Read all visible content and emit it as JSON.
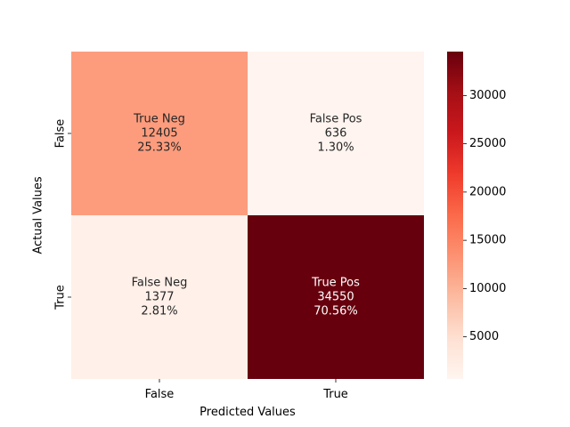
{
  "chart_data": {
    "type": "heatmap",
    "xlabel": "Predicted Values",
    "ylabel": "Actual Values",
    "x_categories": [
      "False",
      "True"
    ],
    "y_categories": [
      "False",
      "True"
    ],
    "cells": [
      {
        "row": 0,
        "col": 0,
        "label": "True Neg",
        "value": 12405,
        "value_text": "12405",
        "percent_text": "25.33%",
        "color": "#fc9c7d",
        "text_color": "#262626"
      },
      {
        "row": 0,
        "col": 1,
        "label": "False Pos",
        "value": 636,
        "value_text": "636",
        "percent_text": "1.30%",
        "color": "#fff4ef",
        "text_color": "#262626"
      },
      {
        "row": 1,
        "col": 0,
        "label": "False Neg",
        "value": 1377,
        "value_text": "1377",
        "percent_text": "2.81%",
        "color": "#fff0e9",
        "text_color": "#262626"
      },
      {
        "row": 1,
        "col": 1,
        "label": "True Pos",
        "value": 34550,
        "value_text": "34550",
        "percent_text": "70.56%",
        "color": "#67000d",
        "text_color": "#ffffff"
      }
    ],
    "colorbar": {
      "colormap": "Reds",
      "min": 636,
      "max": 34550,
      "ticks": [
        5000,
        10000,
        15000,
        20000,
        25000,
        30000
      ],
      "tick_labels": [
        "5000",
        "10000",
        "15000",
        "20000",
        "25000",
        "30000"
      ],
      "stops": [
        "#fff5f0",
        "#fee0d2",
        "#fcbba1",
        "#fc9272",
        "#fb6a4a",
        "#ef3b2c",
        "#cb181d",
        "#a50f15",
        "#67000d"
      ]
    },
    "grid": false
  }
}
